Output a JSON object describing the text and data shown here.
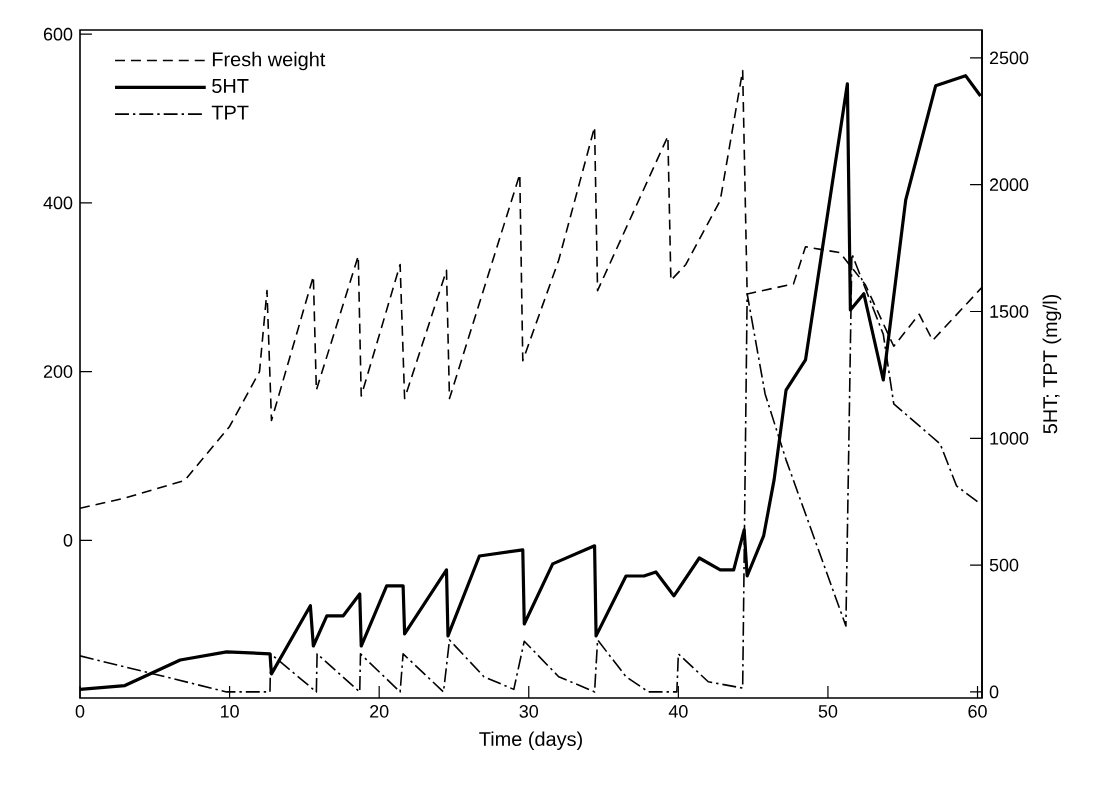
{
  "chart_data": {
    "type": "line",
    "xlabel": "Time (days)",
    "y2label": "5HT; TPT (mg/l)",
    "xlim": [
      0,
      60.3
    ],
    "xticks": [
      0,
      10,
      20,
      30,
      40,
      50,
      60
    ],
    "ylim": [
      -187,
      605
    ],
    "yticks": [
      0,
      200,
      400,
      600
    ],
    "y2lim": [
      -24,
      2610
    ],
    "y2ticks": [
      0,
      500,
      1000,
      1500,
      2000,
      2500
    ],
    "grid": false,
    "legend": "top left",
    "series": [
      {
        "name": "Fresh weight",
        "color": "#000000",
        "line_style": "dashed",
        "axis": "y",
        "x": [
          0,
          3,
          7,
          10,
          12,
          12.5,
          12.8,
          15.6,
          15.8,
          18.6,
          18.8,
          21.4,
          21.7,
          24.5,
          24.7,
          29.4,
          29.6,
          32,
          34.4,
          34.6,
          39.3,
          39.5,
          40.5,
          42.8,
          44.3,
          44.6,
          47.7,
          48.5,
          50.8,
          52.5,
          54.4,
          56.1,
          57,
          60.3
        ],
        "values": [
          38,
          50,
          71,
          135,
          200,
          296,
          142,
          313,
          178,
          337,
          171,
          327,
          168,
          320,
          168,
          434,
          213,
          332,
          490,
          296,
          479,
          308,
          327,
          403,
          557,
          292,
          304,
          348,
          341,
          303,
          230,
          268,
          237,
          300
        ]
      },
      {
        "name": "5HT",
        "color": "#000000",
        "line_style": "solid",
        "axis": "y2",
        "x": [
          0,
          3,
          6.7,
          9.8,
          12.7,
          12.8,
          15.4,
          15.6,
          16.5,
          17.6,
          18.7,
          18.8,
          20.5,
          21.6,
          21.7,
          24.5,
          24.6,
          26.7,
          29.6,
          29.7,
          31.6,
          34.4,
          34.5,
          36.5,
          37.7,
          38.5,
          39.7,
          41.4,
          42.8,
          43.7,
          44.4,
          44.6,
          45.7,
          46.4,
          47.2,
          48.5,
          51.3,
          51.5,
          52.4,
          53.7,
          55.2,
          57.2,
          59.2,
          60.2
        ],
        "values": [
          10,
          25,
          126,
          158,
          150,
          71,
          340,
          181,
          300,
          300,
          386,
          181,
          418,
          418,
          229,
          481,
          221,
          536,
          560,
          268,
          505,
          576,
          221,
          457,
          457,
          473,
          379,
          528,
          481,
          481,
          639,
          457,
          615,
          836,
          1190,
          1309,
          2398,
          1506,
          1570,
          1230,
          1940,
          2390,
          2430,
          2350
        ]
      },
      {
        "name": "TPT",
        "color": "#000000",
        "line_style": "dashdot",
        "axis": "y2",
        "x": [
          0,
          5,
          9.8,
          12.7,
          12.75,
          15.8,
          15.85,
          18.7,
          18.75,
          21.4,
          21.6,
          24.3,
          24.7,
          27,
          29,
          29.7,
          32,
          34.4,
          34.6,
          36.5,
          38,
          39.9,
          40,
          42,
          44.3,
          44.6,
          45.8,
          47.2,
          51.2,
          51.6,
          53.7,
          54.4,
          57.5,
          58.6,
          60.2
        ],
        "values": [
          142,
          70,
          0,
          0,
          150,
          0,
          150,
          0,
          150,
          0,
          150,
          0,
          205,
          60,
          10,
          200,
          60,
          0,
          205,
          60,
          0,
          0,
          150,
          40,
          15,
          1570,
          1175,
          915,
          260,
          1727,
          1410,
          1136,
          978,
          812,
          741
        ]
      }
    ]
  }
}
